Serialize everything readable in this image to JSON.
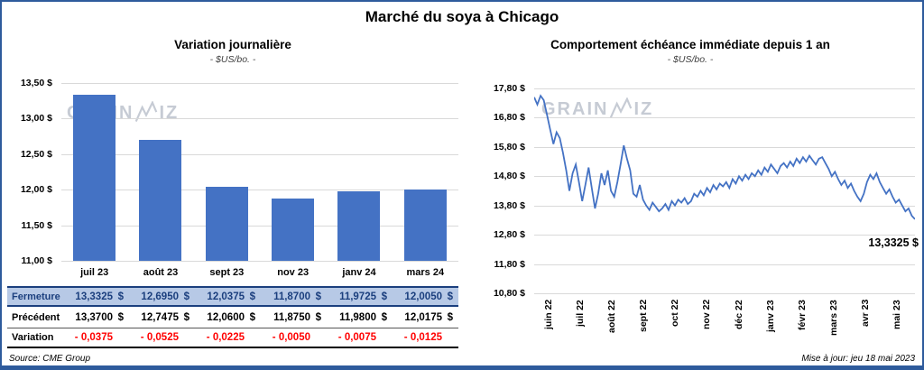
{
  "window": {
    "title": "Marché du soya à Chicago"
  },
  "watermark": {
    "left": "GRAIN",
    "right": "IZ"
  },
  "footer": {
    "source": "Source: CME Group",
    "updated": "Mise à jour: jeu 18 mai 2023"
  },
  "table": {
    "rows": [
      {
        "style": "close",
        "label": "Fermeture",
        "suffix": "$",
        "values": [
          "13,3325",
          "12,6950",
          "12,0375",
          "11,8700",
          "11,9725",
          "12,0050"
        ]
      },
      {
        "style": "previous",
        "label": "Précédent",
        "suffix": "$",
        "values": [
          "13,3700",
          "12,7475",
          "12,0600",
          "11,8750",
          "11,9800",
          "12,0175"
        ]
      },
      {
        "style": "variation",
        "label": "Variation",
        "suffix": "",
        "values": [
          "- 0,0375",
          "- 0,0525",
          "- 0,0225",
          "- 0,0050",
          "- 0,0075",
          "- 0,0125"
        ]
      }
    ]
  },
  "chart_data": [
    {
      "type": "bar",
      "title": "Variation  journalière",
      "subtitle": "- $US/bo. -",
      "categories": [
        "juil 23",
        "août 23",
        "sept 23",
        "nov 23",
        "janv 24",
        "mars 24"
      ],
      "values": [
        13.3325,
        12.695,
        12.0375,
        11.87,
        11.9725,
        12.005
      ],
      "ylim": [
        11.0,
        13.5
      ],
      "y_ticks": [
        13.5,
        13.0,
        12.5,
        12.0,
        11.5,
        11.0
      ],
      "y_tick_labels": [
        "13,50 $",
        "13,00 $",
        "12,50 $",
        "12,00 $",
        "11,50 $",
        "11,00 $"
      ],
      "bar_color": "#4472C4",
      "grid": true,
      "legend": "none"
    },
    {
      "type": "line",
      "title": "Comportement  échéance  immédiate  depuis 1 an",
      "subtitle": "- $US/bo. -",
      "x_tick_labels": [
        "juin 22",
        "juil 22",
        "août 22",
        "sept 22",
        "oct 22",
        "nov 22",
        "déc 22",
        "janv 23",
        "févr 23",
        "mars 23",
        "avr 23",
        "mai 23"
      ],
      "ylim": [
        10.8,
        17.8
      ],
      "y_ticks": [
        17.8,
        16.8,
        15.8,
        14.8,
        13.8,
        12.8,
        11.8,
        10.8
      ],
      "y_tick_labels": [
        "17,80 $",
        "16,80 $",
        "15,80 $",
        "14,80 $",
        "13,80 $",
        "12,80 $",
        "11,80 $",
        "10,80 $"
      ],
      "values": [
        17.5,
        17.25,
        17.55,
        17.4,
        16.9,
        16.4,
        15.9,
        16.3,
        16.1,
        15.6,
        15.0,
        14.3,
        14.9,
        15.2,
        14.6,
        13.95,
        14.5,
        15.1,
        14.4,
        13.7,
        14.2,
        14.9,
        14.5,
        15.0,
        14.3,
        14.1,
        14.6,
        15.2,
        15.85,
        15.4,
        15.0,
        14.2,
        14.1,
        14.5,
        14.0,
        13.8,
        13.65,
        13.9,
        13.75,
        13.6,
        13.7,
        13.85,
        13.65,
        13.95,
        13.8,
        14.0,
        13.9,
        14.05,
        13.85,
        13.95,
        14.2,
        14.1,
        14.3,
        14.15,
        14.4,
        14.25,
        14.5,
        14.35,
        14.55,
        14.45,
        14.6,
        14.4,
        14.7,
        14.55,
        14.8,
        14.65,
        14.85,
        14.7,
        14.9,
        14.8,
        15.0,
        14.85,
        15.1,
        14.95,
        15.2,
        15.05,
        14.9,
        15.15,
        15.25,
        15.1,
        15.3,
        15.15,
        15.4,
        15.25,
        15.45,
        15.3,
        15.5,
        15.35,
        15.2,
        15.4,
        15.45,
        15.25,
        15.05,
        14.8,
        14.95,
        14.7,
        14.5,
        14.65,
        14.4,
        14.55,
        14.3,
        14.1,
        13.95,
        14.2,
        14.6,
        14.85,
        14.7,
        14.9,
        14.6,
        14.4,
        14.2,
        14.35,
        14.1,
        13.9,
        14.0,
        13.8,
        13.6,
        13.7,
        13.45,
        13.3325
      ],
      "last_value_label": "13,3325 $",
      "line_color": "#4472C4",
      "grid": true,
      "legend": "none"
    }
  ]
}
